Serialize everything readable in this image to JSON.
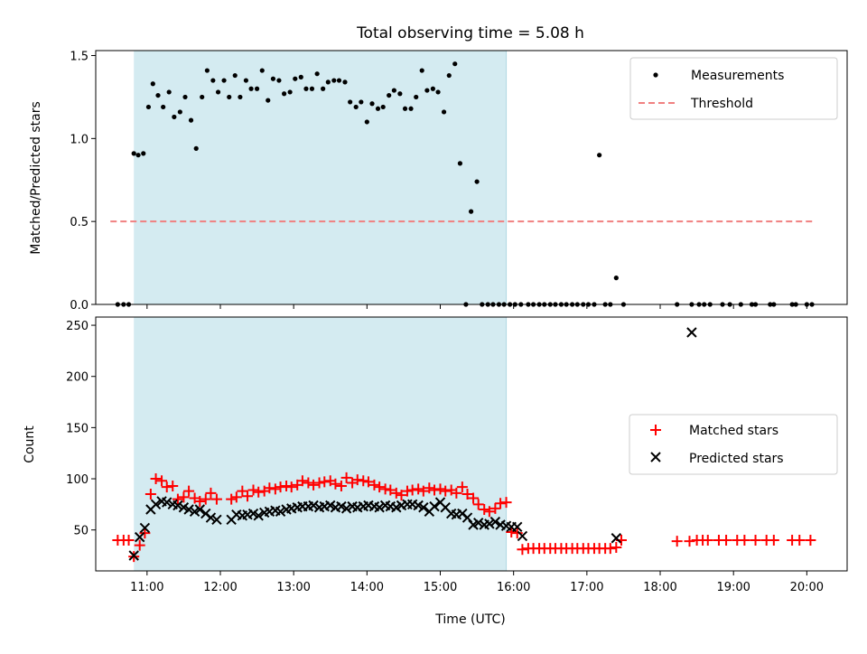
{
  "chart_data": [
    {
      "type": "scatter",
      "panel": "top",
      "title": "Total observing time = 5.08 h",
      "ylabel": "Matched/Predicted stars",
      "ylim": [
        0,
        1.53
      ],
      "yticks": [
        0.0,
        0.5,
        1.0,
        1.5
      ],
      "ytick_labels": [
        "0.0",
        "0.5",
        "1.0",
        "1.5"
      ],
      "xlim": [
        10.3,
        20.55
      ],
      "shaded_interval": [
        10.82,
        15.9
      ],
      "shaded_color": "#d4ebf1",
      "legend_position": "top-right",
      "series": [
        {
          "name": "Measurements",
          "marker": "dot",
          "color": "#000000",
          "x": [
            10.6,
            10.68,
            10.75,
            10.82,
            10.88,
            10.95,
            11.02,
            11.08,
            11.15,
            11.22,
            11.3,
            11.37,
            11.45,
            11.52,
            11.6,
            11.67,
            11.75,
            11.82,
            11.9,
            11.97,
            12.05,
            12.12,
            12.2,
            12.27,
            12.35,
            12.42,
            12.5,
            12.57,
            12.65,
            12.72,
            12.8,
            12.87,
            12.95,
            13.02,
            13.1,
            13.17,
            13.25,
            13.32,
            13.4,
            13.47,
            13.55,
            13.62,
            13.7,
            13.77,
            13.85,
            13.92,
            14.0,
            14.07,
            14.15,
            14.22,
            14.3,
            14.37,
            14.45,
            14.52,
            14.6,
            14.67,
            14.75,
            14.82,
            14.9,
            14.97,
            15.05,
            15.12,
            15.2,
            15.27,
            15.35,
            15.42,
            15.5,
            15.57,
            15.65,
            15.72,
            15.8,
            15.87,
            15.95,
            16.02,
            16.1,
            16.2,
            16.27,
            16.35,
            16.42,
            16.5,
            16.57,
            16.65,
            16.72,
            16.8,
            16.87,
            16.95,
            17.02,
            17.1,
            17.17,
            17.25,
            17.32,
            17.4,
            17.5,
            18.23,
            18.43,
            18.53,
            18.6,
            18.68,
            18.85,
            18.95,
            19.1,
            19.25,
            19.3,
            19.5,
            19.55,
            19.8,
            19.85,
            20.0,
            20.07
          ],
          "y": [
            0.0,
            0.0,
            0.0,
            0.91,
            0.9,
            0.91,
            1.19,
            1.33,
            1.26,
            1.19,
            1.28,
            1.13,
            1.16,
            1.25,
            1.11,
            0.94,
            1.25,
            1.41,
            1.35,
            1.28,
            1.35,
            1.25,
            1.38,
            1.25,
            1.35,
            1.3,
            1.3,
            1.41,
            1.23,
            1.36,
            1.35,
            1.27,
            1.28,
            1.36,
            1.37,
            1.3,
            1.3,
            1.39,
            1.3,
            1.34,
            1.35,
            1.35,
            1.34,
            1.22,
            1.19,
            1.22,
            1.1,
            1.21,
            1.18,
            1.19,
            1.26,
            1.29,
            1.27,
            1.18,
            1.18,
            1.25,
            1.41,
            1.29,
            1.3,
            1.28,
            1.16,
            1.38,
            1.45,
            0.85,
            0.0,
            0.56,
            0.74,
            0.0,
            0.0,
            0.0,
            0.0,
            0.0,
            0.0,
            0.0,
            0.0,
            0.0,
            0.0,
            0.0,
            0.0,
            0.0,
            0.0,
            0.0,
            0.0,
            0.0,
            0.0,
            0.0,
            0.0,
            0.0,
            0.9,
            0.0,
            0.0,
            0.16,
            0.0,
            0.0,
            0.0,
            0.0,
            0.0,
            0.0,
            0.0,
            0.0,
            0.0,
            0.0,
            0.0,
            0.0,
            0.0,
            0.0,
            0.0,
            0.0,
            0.0
          ]
        },
        {
          "name": "Threshold",
          "marker": "dashed-line",
          "color": "#f08080",
          "x": [
            10.5,
            20.1
          ],
          "y": [
            0.5,
            0.5
          ]
        }
      ]
    },
    {
      "type": "scatter",
      "panel": "bottom",
      "xlabel": "Time (UTC)",
      "ylabel": "Count",
      "ylim": [
        10,
        258
      ],
      "yticks": [
        50,
        100,
        150,
        200,
        250
      ],
      "ytick_labels": [
        "50",
        "100",
        "150",
        "200",
        "250"
      ],
      "xlim": [
        10.3,
        20.55
      ],
      "xticks": [
        11,
        12,
        13,
        14,
        15,
        16,
        17,
        18,
        19,
        20
      ],
      "xtick_labels": [
        "11:00",
        "12:00",
        "13:00",
        "14:00",
        "15:00",
        "16:00",
        "17:00",
        "18:00",
        "19:00",
        "20:00"
      ],
      "shaded_interval": [
        10.82,
        15.9
      ],
      "shaded_color": "#d4ebf1",
      "legend_position": "center-right",
      "series": [
        {
          "name": "Matched stars",
          "marker": "plus",
          "color": "#ff0000",
          "x": [
            10.6,
            10.68,
            10.75,
            10.82,
            10.9,
            10.97,
            11.05,
            11.12,
            11.2,
            11.27,
            11.35,
            11.42,
            11.5,
            11.57,
            11.65,
            11.72,
            11.8,
            11.87,
            11.95,
            12.15,
            12.22,
            12.3,
            12.37,
            12.45,
            12.52,
            12.6,
            12.67,
            12.75,
            12.82,
            12.9,
            12.97,
            13.05,
            13.12,
            13.2,
            13.27,
            13.35,
            13.42,
            13.5,
            13.57,
            13.65,
            13.72,
            13.8,
            13.87,
            13.95,
            14.02,
            14.1,
            14.17,
            14.25,
            14.32,
            14.4,
            14.47,
            14.55,
            14.62,
            14.7,
            14.77,
            14.85,
            14.92,
            15.0,
            15.07,
            15.15,
            15.22,
            15.3,
            15.37,
            15.45,
            15.52,
            15.6,
            15.67,
            15.75,
            15.82,
            15.9,
            15.97,
            16.05,
            16.12,
            16.2,
            16.27,
            16.35,
            16.42,
            16.5,
            16.57,
            16.65,
            16.72,
            16.8,
            16.87,
            16.95,
            17.02,
            17.1,
            17.17,
            17.25,
            17.32,
            17.4,
            17.47,
            18.23,
            18.4,
            18.5,
            18.58,
            18.65,
            18.8,
            18.9,
            19.05,
            19.15,
            19.3,
            19.45,
            19.55,
            19.8,
            19.9,
            20.05
          ],
          "y": [
            40,
            40,
            40,
            24,
            35,
            47,
            85,
            100,
            98,
            92,
            93,
            80,
            82,
            88,
            81,
            78,
            80,
            86,
            80,
            80,
            82,
            88,
            83,
            89,
            87,
            88,
            91,
            90,
            92,
            93,
            92,
            94,
            98,
            96,
            94,
            96,
            97,
            98,
            95,
            93,
            101,
            96,
            99,
            98,
            97,
            94,
            92,
            90,
            89,
            86,
            84,
            88,
            89,
            90,
            88,
            91,
            89,
            90,
            88,
            89,
            86,
            92,
            85,
            81,
            75,
            70,
            68,
            71,
            76,
            77,
            48,
            47,
            31,
            32,
            32,
            32,
            32,
            32,
            32,
            32,
            32,
            32,
            32,
            32,
            32,
            32,
            32,
            32,
            32,
            33,
            40,
            39,
            39,
            40,
            40,
            40,
            40,
            40,
            40,
            40,
            40,
            40,
            40,
            40,
            40,
            40
          ]
        },
        {
          "name": "Predicted stars",
          "marker": "x",
          "color": "#000000",
          "x": [
            10.82,
            10.9,
            10.97,
            11.05,
            11.12,
            11.2,
            11.27,
            11.35,
            11.42,
            11.5,
            11.57,
            11.65,
            11.72,
            11.8,
            11.87,
            11.95,
            12.15,
            12.22,
            12.3,
            12.37,
            12.45,
            12.52,
            12.6,
            12.67,
            12.75,
            12.82,
            12.9,
            12.97,
            13.05,
            13.12,
            13.2,
            13.27,
            13.35,
            13.42,
            13.5,
            13.57,
            13.65,
            13.72,
            13.8,
            13.87,
            13.95,
            14.02,
            14.1,
            14.17,
            14.25,
            14.32,
            14.4,
            14.47,
            14.55,
            14.62,
            14.7,
            14.77,
            14.85,
            14.92,
            15.0,
            15.07,
            15.15,
            15.22,
            15.3,
            15.37,
            15.45,
            15.52,
            15.6,
            15.67,
            15.75,
            15.82,
            15.9,
            15.97,
            16.05,
            16.12,
            17.4,
            18.43
          ],
          "y": [
            25,
            43,
            52,
            70,
            75,
            78,
            77,
            75,
            74,
            72,
            70,
            68,
            70,
            66,
            62,
            60,
            60,
            65,
            64,
            65,
            66,
            64,
            67,
            68,
            69,
            68,
            70,
            71,
            72,
            73,
            73,
            74,
            72,
            73,
            74,
            72,
            73,
            71,
            73,
            72,
            73,
            74,
            73,
            72,
            74,
            73,
            72,
            74,
            75,
            75,
            74,
            72,
            68,
            73,
            77,
            72,
            66,
            65,
            66,
            62,
            55,
            57,
            55,
            56,
            58,
            55,
            54,
            53,
            53,
            44,
            42,
            243
          ]
        }
      ]
    }
  ]
}
